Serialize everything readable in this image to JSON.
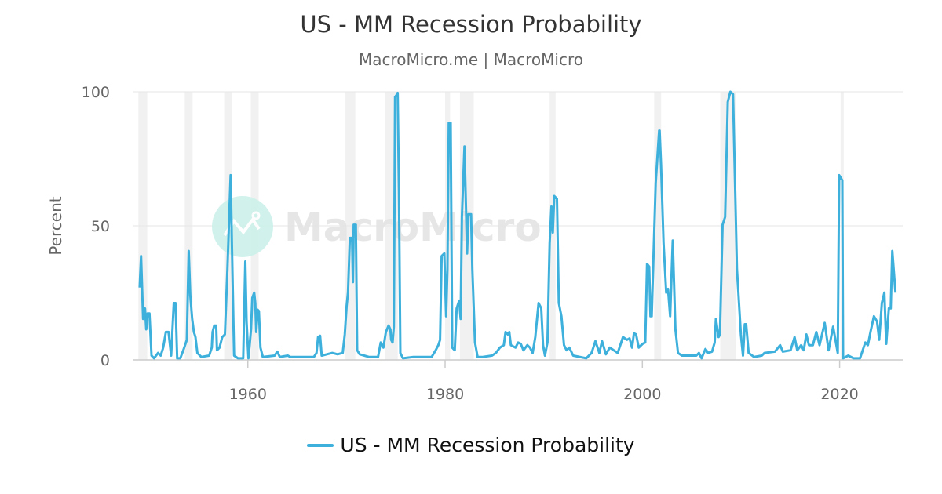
{
  "chart_data": {
    "type": "line",
    "title": "US - MM Recession Probability",
    "subtitle": "MacroMicro.me | MacroMicro",
    "watermark": "MacroMicro",
    "xlabel": "",
    "ylabel": "Percent",
    "xlim": [
      1948.4,
      2026.4
    ],
    "ylim": [
      0,
      100
    ],
    "x_ticks": [
      1960,
      1980,
      2000,
      2020
    ],
    "y_ticks": [
      0,
      50,
      100
    ],
    "grid": true,
    "legend_position": "bottom",
    "line_color": "#3eb0dc",
    "shade_color": "#f1f1f1",
    "shaded_periods": [
      [
        1948.9,
        1949.8
      ],
      [
        1953.6,
        1954.4
      ],
      [
        1957.6,
        1958.4
      ],
      [
        1960.3,
        1961.1
      ],
      [
        1969.9,
        1970.9
      ],
      [
        1973.9,
        1975.2
      ],
      [
        1980.0,
        1980.5
      ],
      [
        1981.5,
        1982.9
      ],
      [
        1990.6,
        1991.2
      ],
      [
        2001.2,
        2001.9
      ],
      [
        2007.9,
        2009.5
      ],
      [
        2020.1,
        2020.3
      ]
    ],
    "series": [
      {
        "name": "US - MM Recession Probability",
        "points": [
          [
            1949.03,
            27.0
          ],
          [
            1949.17,
            38.7
          ],
          [
            1949.38,
            15.3
          ],
          [
            1949.57,
            19.2
          ],
          [
            1949.7,
            11.4
          ],
          [
            1949.83,
            17.3
          ],
          [
            1950.02,
            17.3
          ],
          [
            1950.23,
            1.6
          ],
          [
            1950.49,
            0.6
          ],
          [
            1950.89,
            2.6
          ],
          [
            1951.16,
            1.6
          ],
          [
            1951.42,
            4.6
          ],
          [
            1951.69,
            10.4
          ],
          [
            1951.96,
            10.4
          ],
          [
            1952.22,
            1.6
          ],
          [
            1952.49,
            21.2
          ],
          [
            1952.67,
            21.2
          ],
          [
            1952.83,
            0.6
          ],
          [
            1953.15,
            0.6
          ],
          [
            1953.55,
            4.6
          ],
          [
            1953.81,
            7.5
          ],
          [
            1954.0,
            40.6
          ],
          [
            1954.16,
            24.0
          ],
          [
            1954.35,
            15.3
          ],
          [
            1954.53,
            10.4
          ],
          [
            1954.69,
            8.5
          ],
          [
            1954.88,
            2.6
          ],
          [
            1955.28,
            1.1
          ],
          [
            1956.07,
            1.6
          ],
          [
            1956.34,
            4.6
          ],
          [
            1956.42,
            10.4
          ],
          [
            1956.6,
            12.8
          ],
          [
            1956.79,
            12.8
          ],
          [
            1956.87,
            3.6
          ],
          [
            1957.13,
            4.6
          ],
          [
            1957.4,
            8.5
          ],
          [
            1957.67,
            9.5
          ],
          [
            1957.93,
            33.8
          ],
          [
            1958.25,
            68.9
          ],
          [
            1958.38,
            43.5
          ],
          [
            1958.6,
            1.6
          ],
          [
            1958.99,
            0.6
          ],
          [
            1959.53,
            0.6
          ],
          [
            1959.74,
            36.7
          ],
          [
            1959.87,
            14.3
          ],
          [
            1960.06,
            0.6
          ],
          [
            1960.32,
            11.4
          ],
          [
            1960.45,
            23.1
          ],
          [
            1960.64,
            25.1
          ],
          [
            1960.75,
            21.2
          ],
          [
            1960.85,
            10.4
          ],
          [
            1960.99,
            18.7
          ],
          [
            1961.12,
            18.2
          ],
          [
            1961.28,
            4.6
          ],
          [
            1961.52,
            1.1
          ],
          [
            1962.71,
            1.6
          ],
          [
            1962.98,
            3.1
          ],
          [
            1963.24,
            1.1
          ],
          [
            1964.04,
            1.6
          ],
          [
            1964.31,
            1.1
          ],
          [
            1966.7,
            1.1
          ],
          [
            1966.96,
            2.6
          ],
          [
            1967.12,
            8.5
          ],
          [
            1967.33,
            9.0
          ],
          [
            1967.49,
            1.6
          ],
          [
            1968.02,
            2.1
          ],
          [
            1968.56,
            2.6
          ],
          [
            1969.09,
            2.1
          ],
          [
            1969.62,
            2.6
          ],
          [
            1969.83,
            9.5
          ],
          [
            1970.02,
            20.2
          ],
          [
            1970.15,
            25.1
          ],
          [
            1970.34,
            45.5
          ],
          [
            1970.57,
            45.5
          ],
          [
            1970.65,
            29.0
          ],
          [
            1970.73,
            50.4
          ],
          [
            1970.95,
            50.4
          ],
          [
            1971.08,
            3.6
          ],
          [
            1971.34,
            2.1
          ],
          [
            1972.27,
            1.1
          ],
          [
            1973.2,
            1.1
          ],
          [
            1973.47,
            6.5
          ],
          [
            1973.74,
            4.6
          ],
          [
            1974.0,
            10.4
          ],
          [
            1974.27,
            12.8
          ],
          [
            1974.45,
            11.4
          ],
          [
            1974.53,
            7.5
          ],
          [
            1974.67,
            6.5
          ],
          [
            1974.8,
            12.4
          ],
          [
            1974.93,
            98.1
          ],
          [
            1975.14,
            99.1
          ],
          [
            1975.19,
            99.6
          ],
          [
            1975.32,
            63.0
          ],
          [
            1975.46,
            2.6
          ],
          [
            1975.72,
            0.6
          ],
          [
            1976.78,
            1.1
          ],
          [
            1978.64,
            1.1
          ],
          [
            1979.04,
            3.6
          ],
          [
            1979.31,
            5.5
          ],
          [
            1979.49,
            7.5
          ],
          [
            1979.65,
            38.7
          ],
          [
            1979.92,
            39.7
          ],
          [
            1980.1,
            16.3
          ],
          [
            1980.24,
            33.8
          ],
          [
            1980.37,
            88.4
          ],
          [
            1980.56,
            88.4
          ],
          [
            1980.72,
            4.6
          ],
          [
            1980.98,
            3.6
          ],
          [
            1981.17,
            19.2
          ],
          [
            1981.43,
            22.1
          ],
          [
            1981.57,
            15.3
          ],
          [
            1981.7,
            53.3
          ],
          [
            1981.96,
            79.6
          ],
          [
            1982.23,
            39.7
          ],
          [
            1982.36,
            54.3
          ],
          [
            1982.63,
            54.3
          ],
          [
            1982.76,
            33.8
          ],
          [
            1983.03,
            6.5
          ],
          [
            1983.29,
            1.1
          ],
          [
            1983.82,
            1.1
          ],
          [
            1984.75,
            1.6
          ],
          [
            1985.15,
            2.6
          ],
          [
            1985.55,
            4.6
          ],
          [
            1985.95,
            5.5
          ],
          [
            1986.13,
            10.4
          ],
          [
            1986.35,
            9.5
          ],
          [
            1986.51,
            10.4
          ],
          [
            1986.67,
            5.5
          ],
          [
            1987.14,
            4.6
          ],
          [
            1987.41,
            6.5
          ],
          [
            1987.67,
            6.0
          ],
          [
            1987.94,
            3.6
          ],
          [
            1988.34,
            5.5
          ],
          [
            1988.6,
            4.6
          ],
          [
            1988.87,
            2.6
          ],
          [
            1989.14,
            8.5
          ],
          [
            1989.48,
            21.2
          ],
          [
            1989.75,
            19.2
          ],
          [
            1989.93,
            5.5
          ],
          [
            1990.12,
            1.6
          ],
          [
            1990.38,
            6.5
          ],
          [
            1990.6,
            43.5
          ],
          [
            1990.78,
            57.2
          ],
          [
            1990.92,
            47.5
          ],
          [
            1991.07,
            61.1
          ],
          [
            1991.34,
            60.1
          ],
          [
            1991.53,
            21.2
          ],
          [
            1991.79,
            16.3
          ],
          [
            1992.06,
            5.5
          ],
          [
            1992.32,
            3.6
          ],
          [
            1992.59,
            4.6
          ],
          [
            1992.99,
            1.6
          ],
          [
            1994.31,
            0.6
          ],
          [
            1994.85,
            2.6
          ],
          [
            1995.24,
            7.0
          ],
          [
            1995.64,
            2.6
          ],
          [
            1995.91,
            7.0
          ],
          [
            1996.31,
            2.1
          ],
          [
            1996.7,
            4.6
          ],
          [
            1997.1,
            3.6
          ],
          [
            1997.5,
            2.6
          ],
          [
            1998.03,
            8.5
          ],
          [
            1998.43,
            7.5
          ],
          [
            1998.7,
            8.0
          ],
          [
            1998.96,
            4.6
          ],
          [
            1999.15,
            9.9
          ],
          [
            1999.36,
            9.5
          ],
          [
            1999.63,
            4.6
          ],
          [
            2000.02,
            6.0
          ],
          [
            2000.29,
            6.5
          ],
          [
            2000.48,
            35.8
          ],
          [
            2000.69,
            34.8
          ],
          [
            2000.82,
            16.3
          ],
          [
            2000.95,
            16.3
          ],
          [
            2001.35,
            66.0
          ],
          [
            2001.7,
            85.5
          ],
          [
            2001.75,
            85.5
          ],
          [
            2001.89,
            72.8
          ],
          [
            2002.15,
            43.5
          ],
          [
            2002.42,
            25.1
          ],
          [
            2002.6,
            26.5
          ],
          [
            2002.82,
            16.3
          ],
          [
            2003.08,
            44.5
          ],
          [
            2003.21,
            29.0
          ],
          [
            2003.35,
            11.4
          ],
          [
            2003.61,
            2.6
          ],
          [
            2004.01,
            1.6
          ],
          [
            2004.41,
            1.6
          ],
          [
            2004.94,
            1.6
          ],
          [
            2005.47,
            1.6
          ],
          [
            2005.74,
            2.6
          ],
          [
            2006.0,
            0.6
          ],
          [
            2006.4,
            4.1
          ],
          [
            2006.67,
            2.6
          ],
          [
            2007.07,
            3.1
          ],
          [
            2007.33,
            6.5
          ],
          [
            2007.46,
            15.3
          ],
          [
            2007.73,
            8.5
          ],
          [
            2007.86,
            9.5
          ],
          [
            2008.13,
            50.4
          ],
          [
            2008.39,
            53.3
          ],
          [
            2008.66,
            96.2
          ],
          [
            2008.92,
            100.0
          ],
          [
            2009.19,
            99.1
          ],
          [
            2009.59,
            33.8
          ],
          [
            2009.99,
            9.5
          ],
          [
            2010.2,
            1.6
          ],
          [
            2010.39,
            13.3
          ],
          [
            2010.52,
            13.3
          ],
          [
            2010.78,
            2.6
          ],
          [
            2011.32,
            1.1
          ],
          [
            2012.11,
            1.6
          ],
          [
            2012.38,
            2.6
          ],
          [
            2013.44,
            3.1
          ],
          [
            2013.97,
            5.5
          ],
          [
            2014.24,
            3.1
          ],
          [
            2015.03,
            3.6
          ],
          [
            2015.43,
            8.5
          ],
          [
            2015.7,
            3.6
          ],
          [
            2016.1,
            5.5
          ],
          [
            2016.36,
            3.6
          ],
          [
            2016.63,
            9.5
          ],
          [
            2016.89,
            5.5
          ],
          [
            2017.29,
            5.5
          ],
          [
            2017.64,
            10.4
          ],
          [
            2017.96,
            5.5
          ],
          [
            2018.49,
            13.8
          ],
          [
            2018.88,
            3.6
          ],
          [
            2019.34,
            12.4
          ],
          [
            2019.81,
            2.6
          ],
          [
            2019.95,
            68.9
          ],
          [
            2020.27,
            67.0
          ],
          [
            2020.35,
            0.6
          ],
          [
            2020.88,
            1.6
          ],
          [
            2021.41,
            0.6
          ],
          [
            2022.07,
            0.6
          ],
          [
            2022.34,
            3.6
          ],
          [
            2022.6,
            6.5
          ],
          [
            2022.87,
            5.5
          ],
          [
            2023.13,
            10.4
          ],
          [
            2023.48,
            16.3
          ],
          [
            2023.8,
            14.3
          ],
          [
            2024.01,
            7.5
          ],
          [
            2024.28,
            21.2
          ],
          [
            2024.54,
            25.1
          ],
          [
            2024.73,
            6.0
          ],
          [
            2024.99,
            19.2
          ],
          [
            2025.18,
            19.2
          ],
          [
            2025.34,
            40.6
          ],
          [
            2025.66,
            25.1
          ]
        ]
      }
    ]
  }
}
